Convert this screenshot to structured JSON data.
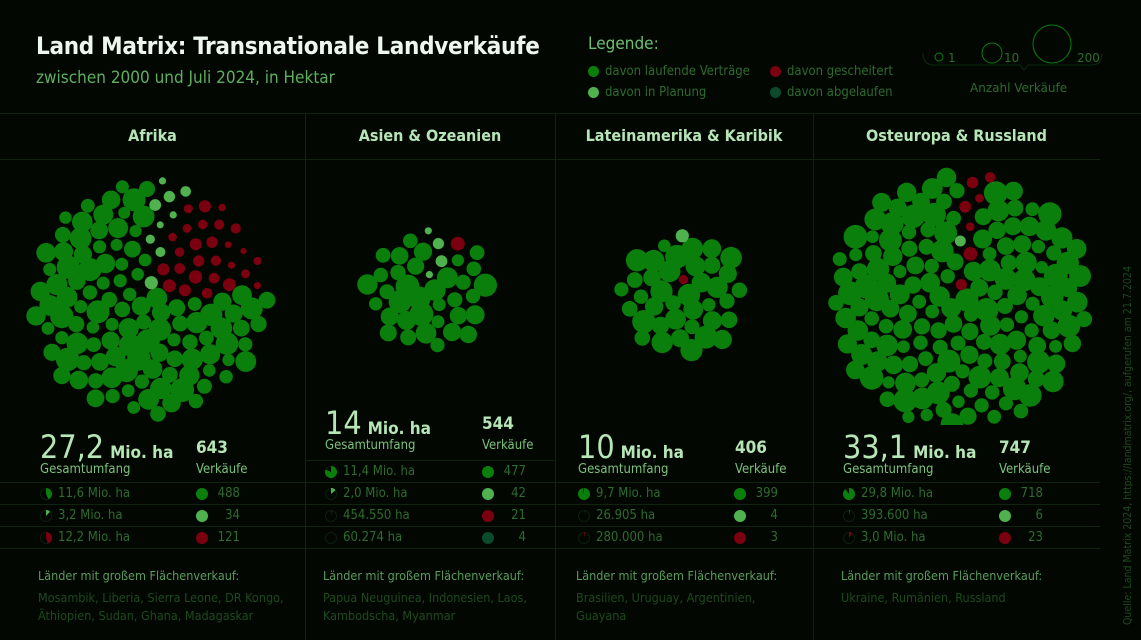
{
  "header": {
    "title": "Land Matrix: Transnationale Landverkäufe",
    "subtitle": "zwischen 2000 und Juli 2024, in Hektar"
  },
  "legend": {
    "title": "Legende:",
    "items": [
      {
        "label": "davon laufende Verträge",
        "color": "#0b7f0b"
      },
      {
        "label": "davon in Planung",
        "color": "#4fb24f"
      },
      {
        "label": "davon gescheitert",
        "color": "#7a0010"
      },
      {
        "label": "davon abgelaufen",
        "color": "#0b4a2a"
      }
    ],
    "size_scale": {
      "values": [
        "1",
        "10",
        "200"
      ],
      "label": "Anzahl Verkäufe"
    }
  },
  "labels": {
    "total": "Gesamtumfang",
    "deals": "Verkäufe",
    "unit": "Mio. ha",
    "countries_heading": "Länder mit großem Flächenverkauf:"
  },
  "source": "Quelle: Land Matrix 2024, https://landmatrix.org/, aufgerufen am 21.7.2024",
  "chart_data": {
    "type": "bubble-cluster",
    "categories": [
      "davon laufende Verträge",
      "davon in Planung",
      "davon gescheitert",
      "davon abgelaufen"
    ],
    "regions": [
      {
        "name": "Afrika",
        "total": "27,2",
        "deals": "643",
        "rows": [
          {
            "area": "11,6 Mio. ha",
            "area_share": 0.43,
            "cat": 0,
            "count": "488"
          },
          {
            "area": "3,2 Mio. ha",
            "area_share": 0.12,
            "cat": 1,
            "count": "34"
          },
          {
            "area": "12,2 Mio. ha",
            "area_share": 0.45,
            "cat": 2,
            "count": "121"
          }
        ],
        "countries": "Mosambik, Liberia, Sierra Leone, DR Kongo, Äthiopien, Sudan, Ghana, Madagaskar"
      },
      {
        "name": "Asien & Ozeanien",
        "total": "14",
        "deals": "544",
        "rows": [
          {
            "area": "11,4 Mio. ha",
            "area_share": 0.82,
            "cat": 0,
            "count": "477"
          },
          {
            "area": "2,0 Mio. ha",
            "area_share": 0.14,
            "cat": 1,
            "count": "42"
          },
          {
            "area": "454.550 ha",
            "area_share": 0.03,
            "cat": 2,
            "count": "21"
          },
          {
            "area": "60.274 ha",
            "area_share": 0.004,
            "cat": 3,
            "count": "4"
          }
        ],
        "countries": "Papua Neuguinea, Indonesien, Laos, Kambodscha, Myanmar"
      },
      {
        "name": "Lateinamerika & Karibik",
        "total": "10",
        "deals": "406",
        "rows": [
          {
            "area": "9,7 Mio. ha",
            "area_share": 0.97,
            "cat": 0,
            "count": "399"
          },
          {
            "area": "26.905 ha",
            "area_share": 0.003,
            "cat": 1,
            "count": "4"
          },
          {
            "area": "280.000 ha",
            "area_share": 0.028,
            "cat": 2,
            "count": "3"
          }
        ],
        "countries": "Brasilien, Uruguay, Argentinien, Guayana"
      },
      {
        "name": "Osteuropa & Russland",
        "total": "33,1",
        "deals": "747",
        "rows": [
          {
            "area": "29,8 Mio. ha",
            "area_share": 0.9,
            "cat": 0,
            "count": "718"
          },
          {
            "area": "393.600 ha",
            "area_share": 0.012,
            "cat": 1,
            "count": "6"
          },
          {
            "area": "3,0 Mio. ha",
            "area_share": 0.09,
            "cat": 2,
            "count": "23"
          }
        ],
        "countries": "Ukraine, Rumänien, Russland"
      }
    ]
  }
}
